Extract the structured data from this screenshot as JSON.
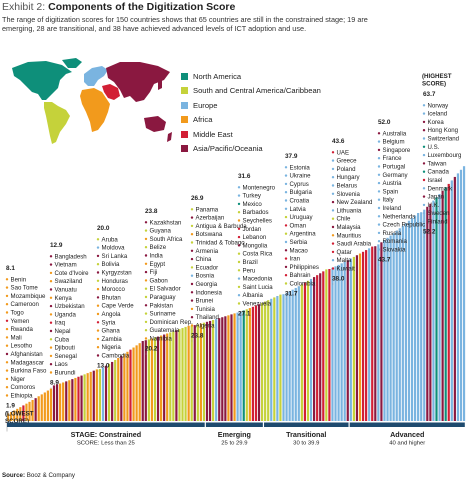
{
  "header": {
    "prefix": "Exhibit 2: ",
    "title": "Components of the Digitization Score",
    "subtitle": "The range of digitization scores for 150 countries shows that 65 countries are still in the constrained stage; 19 are emerging, 28 are transitional, and 38 have achieved advanced levels of ICT adoption and use."
  },
  "legend": [
    {
      "label": "North America",
      "color": "#0e8f7a"
    },
    {
      "label": "South and Central America/Caribbean",
      "color": "#c5d23a"
    },
    {
      "label": "Europe",
      "color": "#7ab4e0"
    },
    {
      "label": "Africa",
      "color": "#f29a1c"
    },
    {
      "label": "Middle East",
      "color": "#d21f35"
    },
    {
      "label": "Asia/Pacific/Oceania",
      "color": "#8a1840"
    }
  ],
  "source": {
    "label": "Source:",
    "text": "Booz & Company"
  },
  "chart_data": {
    "type": "bar",
    "ylim": [
      0,
      70
    ],
    "region_colors": {
      "North America": "#0e8f7a",
      "South and Central America/Caribbean": "#c5d23a",
      "Europe": "#7ab4e0",
      "Africa": "#f29a1c",
      "Middle East": "#d21f35",
      "Asia/Pacific/Oceania": "#8a1840"
    },
    "lowest_label": "(LOWEST\nSCORE)",
    "highest_label": "(HIGHEST\nSCORE)",
    "stages": [
      {
        "name": "STAGE: Constrained",
        "range": "SCORE: Less than 25",
        "count": 65
      },
      {
        "name": "Emerging",
        "range": "25 to 29.9",
        "count": 19
      },
      {
        "name": "Transitional",
        "range": "30 to 39.9",
        "count": 28
      },
      {
        "name": "Advanced",
        "range": "40 and higher",
        "count": 38
      }
    ],
    "groups": [
      {
        "top": "8.1",
        "bottom": "1.9",
        "bottom_note": "(LOWEST\nSCORE)",
        "countries": [
          "Benin",
          "Sao Tome",
          "Mozambique",
          "Cameroon",
          "Togo",
          "Yemen",
          "Rwanda",
          "Mali",
          "Lesotho",
          "Afghanistan",
          "Madagascar",
          "Burkina Faso",
          "Niger",
          "Comoros",
          "Ethiopia"
        ],
        "regions": [
          "Africa",
          "Africa",
          "Africa",
          "Africa",
          "Africa",
          "Middle East",
          "Africa",
          "Africa",
          "Africa",
          "Asia/Pacific/Oceania",
          "Africa",
          "Africa",
          "Africa",
          "Africa",
          "Africa"
        ]
      },
      {
        "top": "12.9",
        "bottom": "8.9",
        "countries": [
          "Bangladesh",
          "Vietnam",
          "Cote d'Ivoire",
          "Swaziland",
          "Vanuatu",
          "Kenya",
          "Uzbekistan",
          "Uganda",
          "Iraq",
          "Nepal",
          "Cuba",
          "Djibouti",
          "Senegal",
          "Laos",
          "Burundi"
        ],
        "regions": [
          "Asia/Pacific/Oceania",
          "Asia/Pacific/Oceania",
          "Africa",
          "Africa",
          "Asia/Pacific/Oceania",
          "Africa",
          "Asia/Pacific/Oceania",
          "Africa",
          "Middle East",
          "Asia/Pacific/Oceania",
          "South and Central America/Caribbean",
          "Africa",
          "Africa",
          "Asia/Pacific/Oceania",
          "Africa"
        ]
      },
      {
        "top": "20.0",
        "bottom": "13.0",
        "countries": [
          "Aruba",
          "Moldova",
          "Sri Lanka",
          "Bolivia",
          "Kyrgyzstan",
          "Honduras",
          "Morocco",
          "Bhutan",
          "Cape Verde",
          "Angola",
          "Syria",
          "Ghana",
          "Zambia",
          "Nigeria",
          "Cambodia"
        ],
        "regions": [
          "South and Central America/Caribbean",
          "Europe",
          "Asia/Pacific/Oceania",
          "South and Central America/Caribbean",
          "Asia/Pacific/Oceania",
          "South and Central America/Caribbean",
          "Africa",
          "Asia/Pacific/Oceania",
          "Africa",
          "Africa",
          "Middle East",
          "Africa",
          "Africa",
          "Africa",
          "Asia/Pacific/Oceania"
        ]
      },
      {
        "top": "23.8",
        "bottom": "20.2",
        "countries": [
          "Kazakhstan",
          "Guyana",
          "South Africa",
          "Belize",
          "India",
          "Egypt",
          "Fiji",
          "Gabon",
          "El Salvador",
          "Paraguay",
          "Pakistan",
          "Suriname",
          "Dominican Rep.",
          "Guatemala",
          "Namibia"
        ],
        "regions": [
          "Asia/Pacific/Oceania",
          "South and Central America/Caribbean",
          "Africa",
          "South and Central America/Caribbean",
          "Asia/Pacific/Oceania",
          "Africa",
          "Asia/Pacific/Oceania",
          "Africa",
          "South and Central America/Caribbean",
          "South and Central America/Caribbean",
          "Asia/Pacific/Oceania",
          "South and Central America/Caribbean",
          "South and Central America/Caribbean",
          "South and Central America/Caribbean",
          "Africa"
        ]
      },
      {
        "top": "26.9",
        "bottom": "23.8",
        "countries": [
          "Panama",
          "Azerbaijan",
          "Antigua & Barbuda",
          "Botswana",
          "Trinidad & Tobago",
          "Armenia",
          "China",
          "Ecuador",
          "Bosnia",
          "Georgia",
          "Indonesia",
          "Brunei",
          "Tunisia",
          "Thailand",
          "Algeria"
        ],
        "regions": [
          "South and Central America/Caribbean",
          "Asia/Pacific/Oceania",
          "South and Central America/Caribbean",
          "Africa",
          "South and Central America/Caribbean",
          "Asia/Pacific/Oceania",
          "Asia/Pacific/Oceania",
          "South and Central America/Caribbean",
          "Europe",
          "Asia/Pacific/Oceania",
          "Asia/Pacific/Oceania",
          "Asia/Pacific/Oceania",
          "Africa",
          "Asia/Pacific/Oceania",
          "Africa"
        ]
      },
      {
        "top": "31.6",
        "bottom": "27.1",
        "countries": [
          "Montenegro",
          "Turkey",
          "Mexico",
          "Barbados",
          "Seychelles",
          "Jordan",
          "Lebanon",
          "Mongolia",
          "Costa Rica",
          "Brazil",
          "Peru",
          "Macedonia",
          "Saint Lucia",
          "Albania",
          "Venezuela"
        ],
        "regions": [
          "Europe",
          "Europe",
          "North America",
          "South and Central America/Caribbean",
          "Africa",
          "Middle East",
          "Middle East",
          "Asia/Pacific/Oceania",
          "South and Central America/Caribbean",
          "South and Central America/Caribbean",
          "South and Central America/Caribbean",
          "Europe",
          "South and Central America/Caribbean",
          "Europe",
          "South and Central America/Caribbean"
        ]
      },
      {
        "top": "37.9",
        "bottom": "31.7",
        "countries": [
          "Estonia",
          "Ukraine",
          "Cyprus",
          "Bulgaria",
          "Croatia",
          "Latvia",
          "Uruguay",
          "Oman",
          "Argentina",
          "Serbia",
          "Macao",
          "Iran",
          "Philippines",
          "Bahrain",
          "Colombia"
        ],
        "regions": [
          "Europe",
          "Europe",
          "Europe",
          "Europe",
          "Europe",
          "Europe",
          "South and Central America/Caribbean",
          "Middle East",
          "South and Central America/Caribbean",
          "Europe",
          "Asia/Pacific/Oceania",
          "Middle East",
          "Asia/Pacific/Oceania",
          "Middle East",
          "South and Central America/Caribbean"
        ]
      },
      {
        "top": "43.6",
        "bottom": "38.0",
        "countries": [
          "UAE",
          "Greece",
          "Poland",
          "Hungary",
          "Belarus",
          "Slovenia",
          "New Zealand",
          "Lithuania",
          "Chile",
          "Malaysia",
          "Mauritius",
          "Saudi Arabia",
          "Qatar",
          "Malta",
          "Kuwait"
        ],
        "regions": [
          "Middle East",
          "Europe",
          "Europe",
          "Europe",
          "Europe",
          "Europe",
          "Asia/Pacific/Oceania",
          "Europe",
          "South and Central America/Caribbean",
          "Asia/Pacific/Oceania",
          "Africa",
          "Middle East",
          "Middle East",
          "Europe",
          "Middle East"
        ]
      },
      {
        "top": "52.0",
        "bottom": "43.7",
        "countries": [
          "Australia",
          "Belgium",
          "Singapore",
          "France",
          "Portugal",
          "Germany",
          "Austria",
          "Spain",
          "Italy",
          "Ireland",
          "Netherlands",
          "Czech Republic",
          "Russia",
          "Romania",
          "Slovakia"
        ],
        "regions": [
          "Asia/Pacific/Oceania",
          "Europe",
          "Asia/Pacific/Oceania",
          "Europe",
          "Europe",
          "Europe",
          "Europe",
          "Europe",
          "Europe",
          "Europe",
          "Europe",
          "Europe",
          "Europe",
          "Europe",
          "Europe"
        ]
      },
      {
        "top": "63.7",
        "bottom": "52.2",
        "top_note": "(HIGHEST\nSCORE)",
        "countries": [
          "Norway",
          "Iceland",
          "Korea",
          "Hong Kong",
          "Switzerland",
          "U.S.",
          "Luxembourg",
          "Taiwan",
          "Canada",
          "Israel",
          "Denmark",
          "Japan",
          "U.K.",
          "Sweden",
          "Finland"
        ],
        "regions": [
          "Europe",
          "Europe",
          "Asia/Pacific/Oceania",
          "Asia/Pacific/Oceania",
          "Europe",
          "North America",
          "Europe",
          "Asia/Pacific/Oceania",
          "North America",
          "Middle East",
          "Europe",
          "Asia/Pacific/Oceania",
          "Europe",
          "Europe",
          "Europe"
        ]
      }
    ]
  }
}
